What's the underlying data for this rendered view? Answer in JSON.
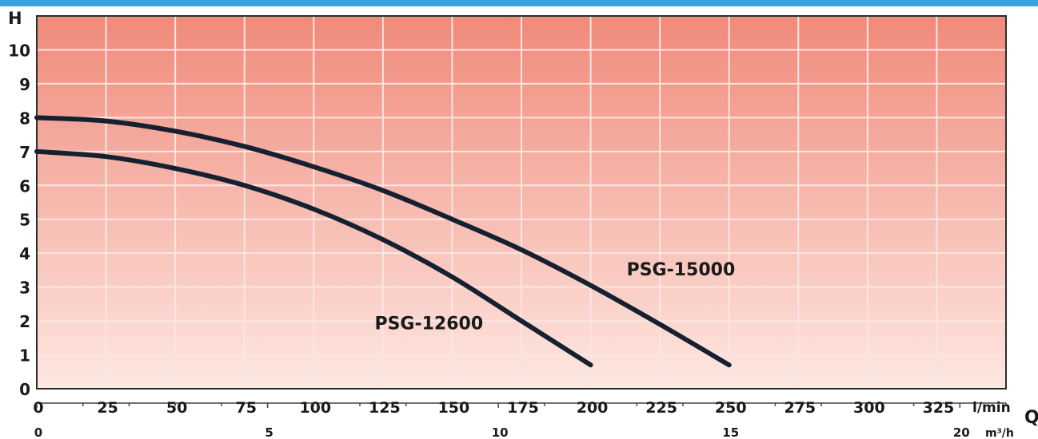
{
  "chart_data": {
    "type": "line",
    "ylabel": "H",
    "xlabel": "Q",
    "x_unit_primary": "l/min",
    "x_unit_secondary": "m³/h",
    "xlim": [
      0,
      350
    ],
    "ylim": [
      0,
      11
    ],
    "x_ticks_primary": [
      0,
      25,
      50,
      75,
      100,
      125,
      150,
      175,
      200,
      225,
      250,
      275,
      300,
      325
    ],
    "x_ticks_secondary": [
      0,
      5,
      10,
      15,
      20
    ],
    "y_ticks": [
      0,
      1,
      2,
      3,
      4,
      5,
      6,
      7,
      8,
      9,
      10
    ],
    "grid": true,
    "series": [
      {
        "name": "PSG-12600",
        "x": [
          0,
          25,
          50,
          75,
          100,
          125,
          150,
          175,
          200
        ],
        "y": [
          7.0,
          6.85,
          6.5,
          6.0,
          5.3,
          4.4,
          3.3,
          2.0,
          0.7
        ]
      },
      {
        "name": "PSG-15000",
        "x": [
          0,
          25,
          50,
          75,
          100,
          125,
          150,
          175,
          200,
          225,
          250
        ],
        "y": [
          8.0,
          7.9,
          7.6,
          7.15,
          6.55,
          5.85,
          5.0,
          4.1,
          3.05,
          1.9,
          0.7
        ]
      }
    ],
    "colors": {
      "line": "#152130",
      "plot_top": "#f08a7a",
      "plot_bottom": "#fde8e2",
      "grid": "#fbe6e1",
      "frame": "#2d2d2d",
      "top_bar": "#3aa3dd"
    }
  }
}
